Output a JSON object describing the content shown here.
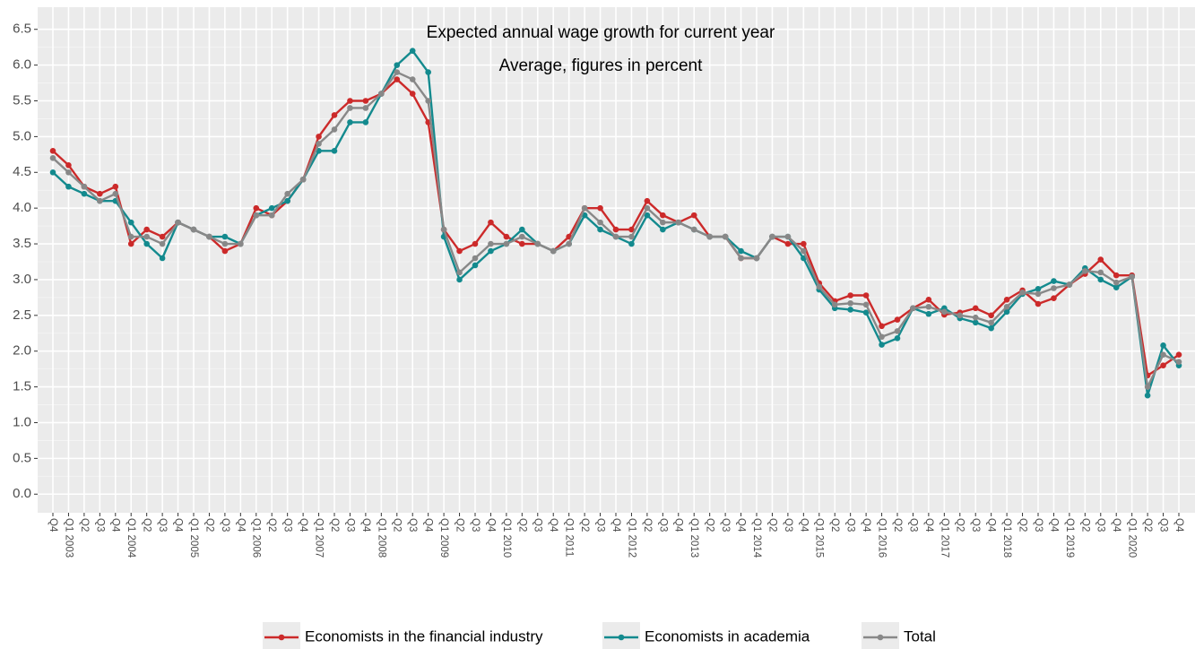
{
  "chart_data": {
    "type": "line",
    "title": "Expected annual wage growth for current year",
    "subtitle": "Average, figures in percent",
    "categories": [
      "Q4",
      "Q1 2003",
      "Q2",
      "Q3",
      "Q4",
      "Q1 2004",
      "Q2",
      "Q3",
      "Q4",
      "Q1 2005",
      "Q2",
      "Q3",
      "Q4",
      "Q1 2006",
      "Q2",
      "Q3",
      "Q4",
      "Q1 2007",
      "Q2",
      "Q3",
      "Q4",
      "Q1 2008",
      "Q2",
      "Q3",
      "Q4",
      "Q1 2009",
      "Q2",
      "Q3",
      "Q4",
      "Q1 2010",
      "Q2",
      "Q3",
      "Q4",
      "Q1 2011",
      "Q2",
      "Q3",
      "Q4",
      "Q1 2012",
      "Q2",
      "Q3",
      "Q4",
      "Q1 2013",
      "Q2",
      "Q3",
      "Q4",
      "Q1 2014",
      "Q2",
      "Q3",
      "Q4",
      "Q1 2015",
      "Q2",
      "Q3",
      "Q4",
      "Q1 2016",
      "Q2",
      "Q3",
      "Q4",
      "Q1 2017",
      "Q2",
      "Q3",
      "Q4",
      "Q1 2018",
      "Q2",
      "Q3",
      "Q4",
      "Q1 2019",
      "Q2",
      "Q3",
      "Q4",
      "Q1 2020",
      "Q2",
      "Q3",
      "Q4"
    ],
    "series": [
      {
        "name": "Economists in the financial industry",
        "color": "#cc2a2a",
        "values": [
          4.8,
          4.6,
          4.3,
          4.2,
          4.3,
          3.5,
          3.7,
          3.6,
          3.8,
          3.7,
          3.6,
          3.4,
          3.5,
          4.0,
          3.9,
          4.1,
          4.4,
          5.0,
          5.3,
          5.5,
          5.5,
          5.6,
          5.8,
          5.6,
          5.2,
          3.7,
          3.4,
          3.5,
          3.8,
          3.6,
          3.5,
          3.5,
          3.4,
          3.6,
          4.0,
          4.0,
          3.7,
          3.7,
          4.1,
          3.9,
          3.8,
          3.9,
          3.6,
          3.6,
          3.3,
          3.3,
          3.6,
          3.5,
          3.5,
          2.95,
          2.7,
          2.78,
          2.78,
          2.35,
          2.44,
          2.6,
          2.72,
          2.51,
          2.54,
          2.6,
          2.5,
          2.72,
          2.85,
          2.66,
          2.74,
          2.93,
          3.08,
          3.28,
          3.06,
          3.06,
          1.66,
          1.8,
          1.95
        ]
      },
      {
        "name": "Economists in academia",
        "color": "#138a8e",
        "values": [
          4.5,
          4.3,
          4.2,
          4.1,
          4.1,
          3.8,
          3.5,
          3.3,
          3.8,
          3.7,
          3.6,
          3.6,
          3.5,
          3.9,
          4.0,
          4.1,
          4.4,
          4.8,
          4.8,
          5.2,
          5.2,
          5.6,
          6.0,
          6.2,
          5.9,
          3.6,
          3.0,
          3.2,
          3.4,
          3.5,
          3.7,
          3.5,
          3.4,
          3.5,
          3.9,
          3.7,
          3.6,
          3.5,
          3.9,
          3.7,
          3.8,
          3.7,
          3.6,
          3.6,
          3.4,
          3.3,
          3.6,
          3.6,
          3.3,
          2.86,
          2.6,
          2.58,
          2.54,
          2.09,
          2.18,
          2.6,
          2.52,
          2.6,
          2.46,
          2.4,
          2.32,
          2.55,
          2.8,
          2.87,
          2.98,
          2.93,
          3.16,
          3.0,
          2.89,
          3.04,
          1.38,
          2.08,
          1.8
        ]
      },
      {
        "name": "Total",
        "color": "#888888",
        "values": [
          4.7,
          4.5,
          4.3,
          4.1,
          4.2,
          3.6,
          3.6,
          3.5,
          3.8,
          3.7,
          3.6,
          3.5,
          3.5,
          3.9,
          3.9,
          4.2,
          4.4,
          4.9,
          5.1,
          5.4,
          5.4,
          5.6,
          5.9,
          5.8,
          5.5,
          3.7,
          3.1,
          3.3,
          3.5,
          3.5,
          3.6,
          3.5,
          3.4,
          3.5,
          4.0,
          3.8,
          3.6,
          3.6,
          4.0,
          3.8,
          3.8,
          3.7,
          3.6,
          3.6,
          3.3,
          3.3,
          3.6,
          3.6,
          3.4,
          2.9,
          2.65,
          2.67,
          2.65,
          2.2,
          2.28,
          2.6,
          2.62,
          2.55,
          2.5,
          2.47,
          2.4,
          2.62,
          2.82,
          2.8,
          2.88,
          2.93,
          3.12,
          3.1,
          2.96,
          3.04,
          1.5,
          1.95,
          1.85
        ]
      }
    ],
    "ylim": [
      -0.26,
      6.81
    ],
    "yticks": [
      {
        "value": 0,
        "label": "0.0"
      },
      0.5,
      {
        "value": 1,
        "label": "1.0"
      },
      1.5,
      {
        "value": 2,
        "label": "2.0"
      },
      2.5,
      {
        "value": 3,
        "label": "3.0"
      },
      3.5,
      {
        "value": 4,
        "label": "4.0"
      },
      4.5,
      {
        "value": 5,
        "label": "5.0"
      },
      5.5,
      {
        "value": 6,
        "label": "6.0"
      },
      6.5
    ],
    "grid": true,
    "legend_position": "bottom"
  }
}
